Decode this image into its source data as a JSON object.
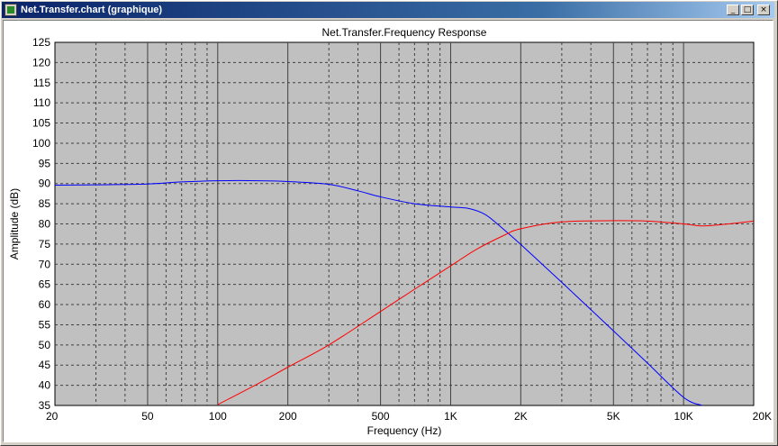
{
  "window": {
    "title": "Net.Transfer.chart (graphique)",
    "icon": "chart-app-icon",
    "controls": {
      "minimize_glyph": "_",
      "maximize_glyph": "□",
      "close_glyph": "×"
    }
  },
  "chart_data": {
    "type": "line",
    "title": "Net.Transfer.Frequency Response",
    "xlabel": "Frequency (Hz)",
    "ylabel": "Amplitude (dB)",
    "xscale": "log",
    "xlim": [
      20,
      20000
    ],
    "ylim": [
      35,
      125
    ],
    "grid": true,
    "plot_background": "#c0c0c0",
    "xticks": [
      {
        "value": 20,
        "label": "20"
      },
      {
        "value": 50,
        "label": "50"
      },
      {
        "value": 100,
        "label": "100"
      },
      {
        "value": 200,
        "label": "200"
      },
      {
        "value": 500,
        "label": "500"
      },
      {
        "value": 1000,
        "label": "1K"
      },
      {
        "value": 2000,
        "label": "2K"
      },
      {
        "value": 5000,
        "label": "5K"
      },
      {
        "value": 10000,
        "label": "10K"
      },
      {
        "value": 20000,
        "label": "20K"
      }
    ],
    "yticks": [
      35,
      40,
      45,
      50,
      55,
      60,
      65,
      70,
      75,
      80,
      85,
      90,
      95,
      100,
      105,
      110,
      115,
      120,
      125
    ],
    "series": [
      {
        "color": "#0000ff",
        "x": [
          20,
          30,
          50,
          70,
          100,
          150,
          200,
          300,
          400,
          500,
          700,
          1000,
          1200,
          1400,
          1600,
          2000,
          3000,
          5000,
          7000,
          10000,
          12000
        ],
        "y": [
          89.6,
          89.7,
          89.9,
          90.4,
          90.7,
          90.7,
          90.5,
          89.8,
          88.2,
          86.7,
          85.0,
          84.2,
          83.8,
          82.4,
          79.8,
          74.9,
          65.5,
          53.5,
          45.5,
          37.0,
          35.0
        ]
      },
      {
        "color": "#ff0000",
        "x": [
          100,
          150,
          200,
          300,
          500,
          700,
          1000,
          1300,
          1700,
          2000,
          3000,
          5000,
          7000,
          10000,
          12000,
          15000,
          20000
        ],
        "y": [
          35.2,
          40.5,
          44.5,
          50.0,
          58.3,
          63.8,
          69.6,
          73.8,
          77.2,
          78.8,
          80.5,
          80.8,
          80.7,
          80.0,
          79.5,
          79.9,
          80.7
        ]
      }
    ]
  }
}
